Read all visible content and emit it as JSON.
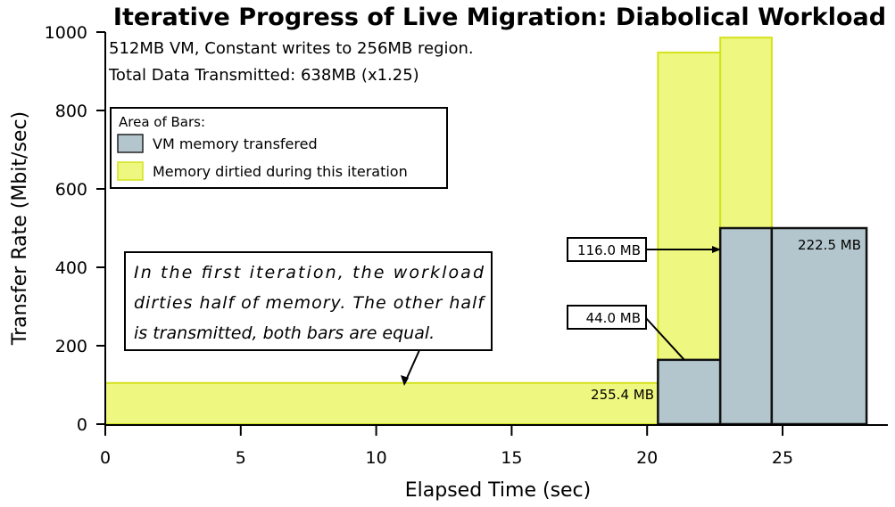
{
  "chart_data": {
    "type": "bar",
    "title": "Iterative Progress of Live Migration: Diabolical Workload",
    "subtitle_lines": [
      "512MB VM, Constant writes to 256MB region.",
      "Total Data Transmitted: 638MB (x1.25)"
    ],
    "xlabel": "Elapsed Time (sec)",
    "ylabel": "Transfer Rate (Mbit/sec)",
    "xlim": [
      0,
      28.5
    ],
    "ylim": [
      0,
      1000
    ],
    "xticks": [
      "0",
      "5",
      "10",
      "15",
      "20",
      "25"
    ],
    "yticks": [
      "0",
      "200",
      "400",
      "600",
      "800",
      "1000"
    ],
    "grid": false,
    "legend": {
      "title": "Area of Bars:",
      "placement": "top-left",
      "entries": [
        {
          "label": "VM memory transfered",
          "color": "#b3c6cd"
        },
        {
          "label": "Memory dirtied during this iteration",
          "color": "#eef77f"
        }
      ]
    },
    "iterations": [
      {
        "start": 0,
        "end": 20.4,
        "transferred_rate": 105,
        "dirtied_rate": 105
      },
      {
        "start": 20.4,
        "end": 22.7,
        "transferred_rate": 164,
        "dirtied_rate": 948
      },
      {
        "start": 22.7,
        "end": 24.6,
        "transferred_rate": 500,
        "dirtied_rate": 986
      },
      {
        "start": 24.6,
        "end": 28.1,
        "transferred_rate": 500,
        "dirtied_rate": null
      }
    ],
    "data_labels": [
      "255.4 MB",
      "44.0 MB",
      "116.0 MB",
      "222.5 MB"
    ],
    "annotation": [
      "In the first iteration, the workload",
      "dirties half of memory.  The other half",
      "is transmitted, both bars are equal."
    ]
  }
}
